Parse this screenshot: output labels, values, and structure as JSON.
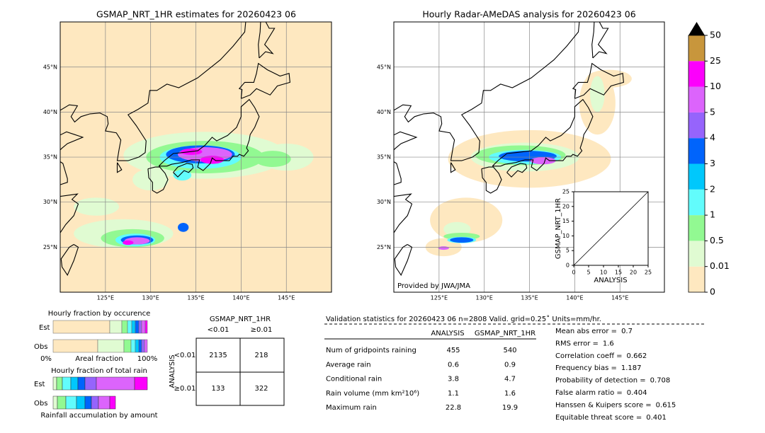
{
  "left_map": {
    "title": "GSMAP_NRT_1HR estimates for 20260423 06",
    "lat_labels": [
      "45°N",
      "40°N",
      "35°N",
      "30°N",
      "25°N"
    ],
    "lon_labels": [
      "125°E",
      "130°E",
      "135°E",
      "140°E",
      "145°E"
    ]
  },
  "right_map": {
    "title": "Hourly Radar-AMeDAS analysis for 20260423 06",
    "lat_labels": [
      "45°N",
      "40°N",
      "35°N",
      "30°N",
      "25°N"
    ],
    "lon_labels": [
      "125°E",
      "130°E",
      "135°E",
      "140°E",
      "145°E"
    ],
    "credit": "Provided by JWA/JMA"
  },
  "scatter": {
    "xlabel": "ANALYSIS",
    "ylabel": "GSMAP_NRT_1HR",
    "lim": [
      0,
      25
    ],
    "xticks": [
      0,
      5,
      10,
      15,
      20,
      25
    ],
    "yticks": [
      0,
      5,
      10,
      15,
      20,
      25
    ]
  },
  "colorbar": {
    "ticks": [
      0,
      0.01,
      0.5,
      1,
      2,
      3,
      4,
      5,
      10,
      25,
      50
    ],
    "colors": [
      "#fee8c0",
      "#e0fbd2",
      "#92f992",
      "#62fcfc",
      "#00c8fc",
      "#0064fc",
      "#9664fc",
      "#dc64fc",
      "#fc00fc",
      "#c8963c"
    ]
  },
  "occurrence": {
    "title": "Hourly fraction by occurence",
    "rows": [
      "Est",
      "Obs"
    ],
    "axis_start": "0%",
    "axis_label": "Areal fraction",
    "axis_end": "100%"
  },
  "total_rain": {
    "title": "Hourly fraction of total rain",
    "rows": [
      "Est",
      "Obs"
    ],
    "caption": "Rainfall accumulation by amount"
  },
  "contingency": {
    "col_title": "GSMAP_NRT_1HR",
    "cols": [
      "<0.01",
      "≥0.01"
    ],
    "row_title": "ANALYSIS",
    "rows": [
      "<0.01",
      "≥0.01"
    ],
    "cells": [
      [
        2135,
        218
      ],
      [
        133,
        322
      ]
    ]
  },
  "validation": {
    "header": "Validation statistics for 20260423 06  n=2808 Valid. grid=0.25˚ Units=mm/hr.",
    "columns": [
      "ANALYSIS",
      "GSMAP_NRT_1HR"
    ],
    "rows": [
      {
        "label": "Num of gridpoints raining",
        "values": [
          455,
          540
        ]
      },
      {
        "label": "Average rain",
        "values": [
          0.6,
          0.9
        ]
      },
      {
        "label": "Conditional rain",
        "values": [
          3.8,
          4.7
        ]
      },
      {
        "label": "Rain volume (mm km²10⁶)",
        "values": [
          1.1,
          1.6
        ]
      },
      {
        "label": "Maximum rain",
        "values": [
          22.8,
          19.9
        ]
      }
    ],
    "scores": [
      {
        "label": "Mean abs error =",
        "value": 0.7
      },
      {
        "label": "RMS error =",
        "value": 1.6
      },
      {
        "label": "Correlation coeff =",
        "value": 0.662
      },
      {
        "label": "Frequency bias =",
        "value": 1.187
      },
      {
        "label": "Probability of detection =",
        "value": 0.708
      },
      {
        "label": "False alarm ratio =",
        "value": 0.404
      },
      {
        "label": "Hanssen & Kuipers score =",
        "value": 0.615
      },
      {
        "label": "Equitable threat score =",
        "value": 0.401
      }
    ]
  }
}
